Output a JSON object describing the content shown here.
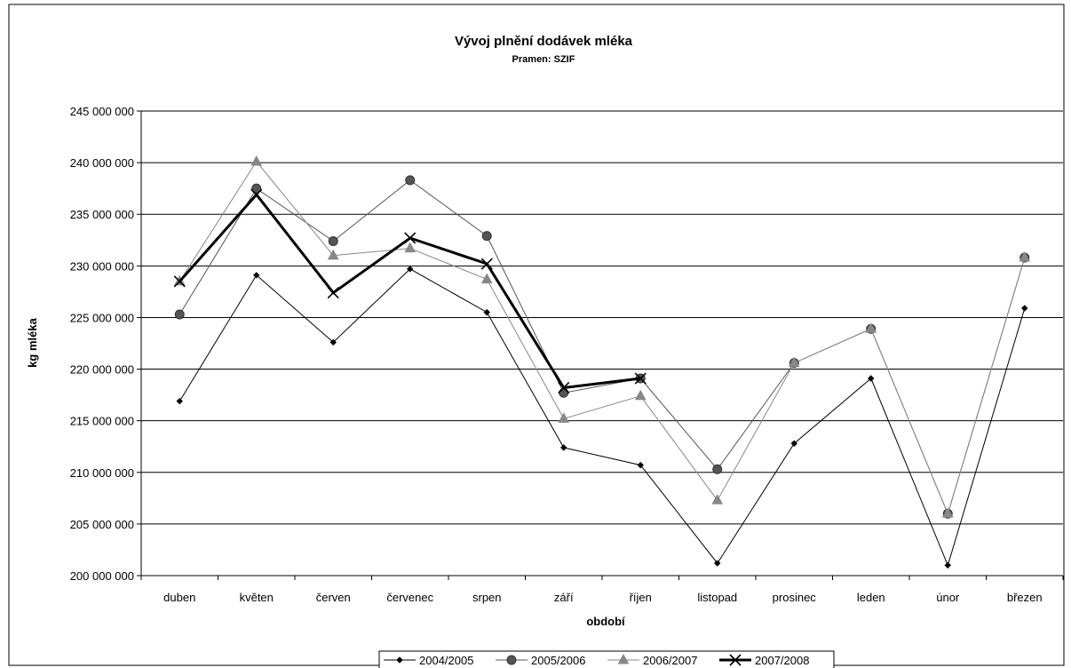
{
  "chart_data": {
    "type": "line",
    "title": "Vývoj plnění dodávek mléka",
    "subtitle": "Pramen: SZIF",
    "xlabel": "období",
    "ylabel": "kg mléka",
    "ylim": [
      200000000,
      245000000
    ],
    "ytick_step": 5000000,
    "ytick_labels": [
      "200 000 000",
      "205 000 000",
      "210 000 000",
      "215 000 000",
      "220 000 000",
      "225 000 000",
      "230 000 000",
      "235 000 000",
      "240 000 000",
      "245 000 000"
    ],
    "grid": true,
    "legend_position": "bottom",
    "categories": [
      "duben",
      "květen",
      "červen",
      "červenec",
      "srpen",
      "září",
      "říjen",
      "listopad",
      "prosinec",
      "leden",
      "únor",
      "březen"
    ],
    "series": [
      {
        "name": "2004/2005",
        "color": "#000000",
        "marker": "diamond",
        "values": [
          216900000,
          229100000,
          222600000,
          229700000,
          225500000,
          212400000,
          210700000,
          201200000,
          212800000,
          219100000,
          201000000,
          225900000
        ]
      },
      {
        "name": "2005/2006",
        "color": "#555555",
        "marker": "circle",
        "values": [
          225300000,
          237500000,
          232400000,
          238300000,
          232900000,
          217700000,
          219100000,
          210300000,
          220600000,
          223900000,
          206000000,
          230800000
        ]
      },
      {
        "name": "2006/2007",
        "color": "#888888",
        "marker": "triangle",
        "values": [
          228500000,
          240100000,
          231000000,
          231700000,
          228700000,
          215200000,
          217400000,
          207300000,
          220600000,
          223900000,
          206000000,
          230800000
        ]
      },
      {
        "name": "2007/2008",
        "color": "#000000",
        "marker": "x",
        "values": [
          228500000,
          236900000,
          227400000,
          232700000,
          230200000,
          218200000,
          219100000,
          null,
          null,
          null,
          null,
          null
        ]
      }
    ]
  }
}
